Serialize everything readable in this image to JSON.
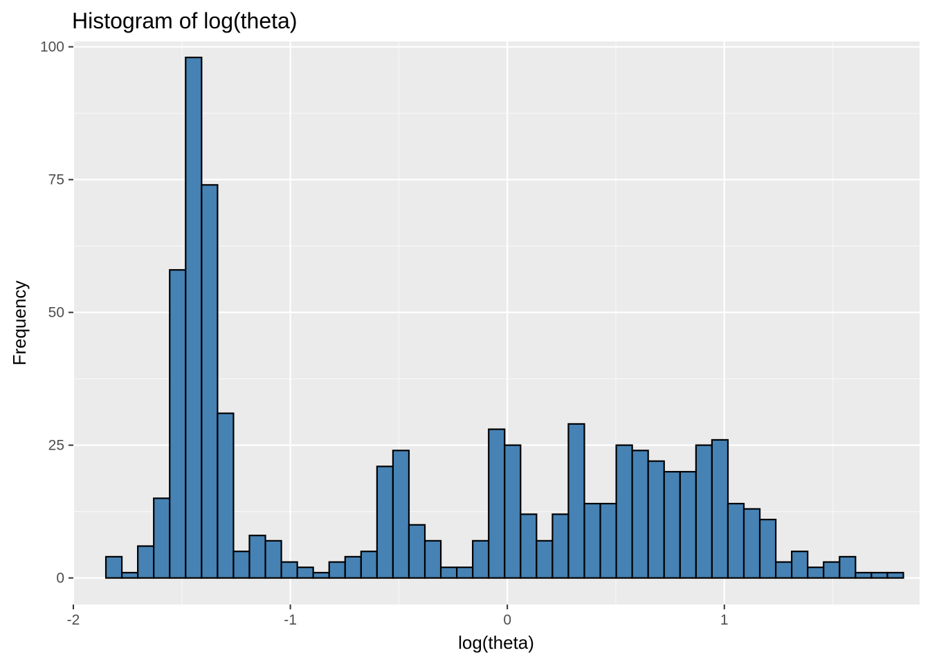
{
  "chart_data": {
    "type": "bar",
    "subtype": "histogram",
    "title": "Histogram of log(theta)",
    "xlabel": "log(theta)",
    "ylabel": "Frequency",
    "xlim": [
      -2.0,
      1.9
    ],
    "ylim": [
      -5,
      101
    ],
    "x_ticks": [
      -2,
      -1,
      0,
      1
    ],
    "x_tick_labels": [
      "-2",
      "-1",
      "0",
      "1"
    ],
    "y_ticks": [
      0,
      25,
      50,
      75,
      100
    ],
    "y_tick_labels": [
      "0",
      "25",
      "50",
      "75",
      "100"
    ],
    "grid": true,
    "legend": "none",
    "colors": {
      "bar_fill": "#4682b4",
      "bar_stroke": "#000000",
      "panel_background": "#ebebeb",
      "grid_major": "#ffffff",
      "grid_minor": "#f7f7f7"
    },
    "bin_width": 0.0735,
    "bins": [
      {
        "x0": -1.85,
        "x1": -1.7765,
        "count": 4
      },
      {
        "x0": -1.7765,
        "x1": -1.703,
        "count": 1
      },
      {
        "x0": -1.703,
        "x1": -1.6295,
        "count": 6
      },
      {
        "x0": -1.6295,
        "x1": -1.556,
        "count": 15
      },
      {
        "x0": -1.556,
        "x1": -1.4825,
        "count": 58
      },
      {
        "x0": -1.4825,
        "x1": -1.409,
        "count": 98
      },
      {
        "x0": -1.409,
        "x1": -1.3355,
        "count": 74
      },
      {
        "x0": -1.3355,
        "x1": -1.262,
        "count": 31
      },
      {
        "x0": -1.262,
        "x1": -1.1885,
        "count": 5
      },
      {
        "x0": -1.1885,
        "x1": -1.115,
        "count": 8
      },
      {
        "x0": -1.115,
        "x1": -1.0415,
        "count": 7
      },
      {
        "x0": -1.0415,
        "x1": -0.968,
        "count": 3
      },
      {
        "x0": -0.968,
        "x1": -0.8945,
        "count": 2
      },
      {
        "x0": -0.8945,
        "x1": -0.821,
        "count": 1
      },
      {
        "x0": -0.821,
        "x1": -0.7475,
        "count": 3
      },
      {
        "x0": -0.7475,
        "x1": -0.674,
        "count": 4
      },
      {
        "x0": -0.674,
        "x1": -0.6005,
        "count": 5
      },
      {
        "x0": -0.6005,
        "x1": -0.527,
        "count": 21
      },
      {
        "x0": -0.527,
        "x1": -0.4535,
        "count": 24
      },
      {
        "x0": -0.4535,
        "x1": -0.38,
        "count": 10
      },
      {
        "x0": -0.38,
        "x1": -0.3065,
        "count": 7
      },
      {
        "x0": -0.3065,
        "x1": -0.233,
        "count": 2
      },
      {
        "x0": -0.233,
        "x1": -0.1595,
        "count": 2
      },
      {
        "x0": -0.1595,
        "x1": -0.086,
        "count": 7
      },
      {
        "x0": -0.086,
        "x1": -0.0125,
        "count": 28
      },
      {
        "x0": -0.0125,
        "x1": 0.061,
        "count": 25
      },
      {
        "x0": 0.061,
        "x1": 0.1345,
        "count": 12
      },
      {
        "x0": 0.1345,
        "x1": 0.208,
        "count": 7
      },
      {
        "x0": 0.208,
        "x1": 0.2815,
        "count": 12
      },
      {
        "x0": 0.2815,
        "x1": 0.355,
        "count": 29
      },
      {
        "x0": 0.355,
        "x1": 0.4285,
        "count": 14
      },
      {
        "x0": 0.4285,
        "x1": 0.502,
        "count": 14
      },
      {
        "x0": 0.502,
        "x1": 0.5755,
        "count": 25
      },
      {
        "x0": 0.5755,
        "x1": 0.649,
        "count": 24
      },
      {
        "x0": 0.649,
        "x1": 0.7225,
        "count": 22
      },
      {
        "x0": 0.7225,
        "x1": 0.796,
        "count": 20
      },
      {
        "x0": 0.796,
        "x1": 0.8695,
        "count": 20
      },
      {
        "x0": 0.8695,
        "x1": 0.943,
        "count": 25
      },
      {
        "x0": 0.943,
        "x1": 1.0165,
        "count": 26
      },
      {
        "x0": 1.0165,
        "x1": 1.09,
        "count": 14
      },
      {
        "x0": 1.09,
        "x1": 1.1635,
        "count": 13
      },
      {
        "x0": 1.1635,
        "x1": 1.237,
        "count": 11
      },
      {
        "x0": 1.237,
        "x1": 1.3105,
        "count": 3
      },
      {
        "x0": 1.3105,
        "x1": 1.384,
        "count": 5
      },
      {
        "x0": 1.384,
        "x1": 1.4575,
        "count": 2
      },
      {
        "x0": 1.4575,
        "x1": 1.531,
        "count": 3
      },
      {
        "x0": 1.531,
        "x1": 1.6045,
        "count": 4
      },
      {
        "x0": 1.6045,
        "x1": 1.678,
        "count": 1
      },
      {
        "x0": 1.678,
        "x1": 1.7515,
        "count": 1
      },
      {
        "x0": 1.7515,
        "x1": 1.825,
        "count": 1
      }
    ]
  }
}
